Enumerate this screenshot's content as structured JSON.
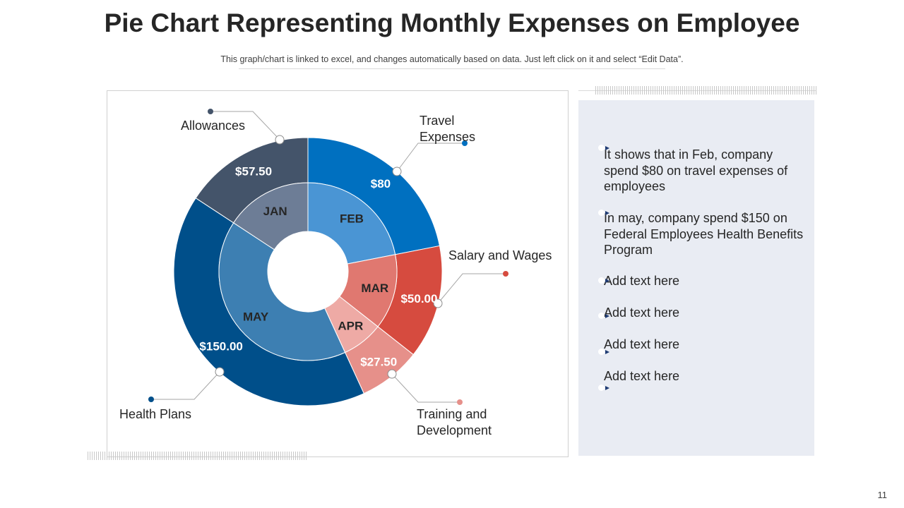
{
  "header": {
    "title": "Pie Chart Representing Monthly Expenses on Employee",
    "subtitle": "This graph/chart is linked to excel, and changes automatically based on data. Just left click on it and select “Edit Data”."
  },
  "chart_data": {
    "type": "pie",
    "subtype": "nested-donut",
    "slices": [
      {
        "month": "JAN",
        "category": "Allowances",
        "value": 57.5,
        "value_label": "$57.50",
        "outer_color": "#44546a",
        "inner_color": "#6d7d96"
      },
      {
        "month": "FEB",
        "category": "Travel Expenses",
        "value": 80,
        "value_label": "$80",
        "outer_color": "#0070c0",
        "inner_color": "#4a95d4"
      },
      {
        "month": "MAR",
        "category": "Salary and Wages",
        "value": 50,
        "value_label": "$50.00",
        "outer_color": "#d64b3f",
        "inner_color": "#e07870"
      },
      {
        "month": "APR",
        "category": "Training and Development",
        "value": 27.5,
        "value_label": "$27.50",
        "outer_color": "#e6908a",
        "inner_color": "#eeaaa5"
      },
      {
        "month": "MAY",
        "category": "Health Plans",
        "value": 150,
        "value_label": "$150.00",
        "outer_color": "#004f8a",
        "inner_color": "#3d7fb2"
      }
    ],
    "callout_labels": {
      "allowances": "Allowances",
      "travel_1": "Travel",
      "travel_2": "Expenses",
      "salary": "Salary and Wages",
      "training_1": "Training and",
      "training_2": "Development",
      "health": "Health Plans"
    },
    "callout_dot_colors": {
      "allowances": "#44546a",
      "travel": "#0070c0",
      "salary": "#d64b3f",
      "training": "#e6908a",
      "health": "#004f8a"
    }
  },
  "panel": {
    "items": [
      "It shows that in Feb, company spend $80 on travel expenses of employees",
      "In may, company spend $150 on Federal Employees Health Benefits Program",
      "Add text here",
      "Add text here",
      "Add text here",
      "Add text here"
    ]
  },
  "footer": {
    "page_number": "11"
  }
}
